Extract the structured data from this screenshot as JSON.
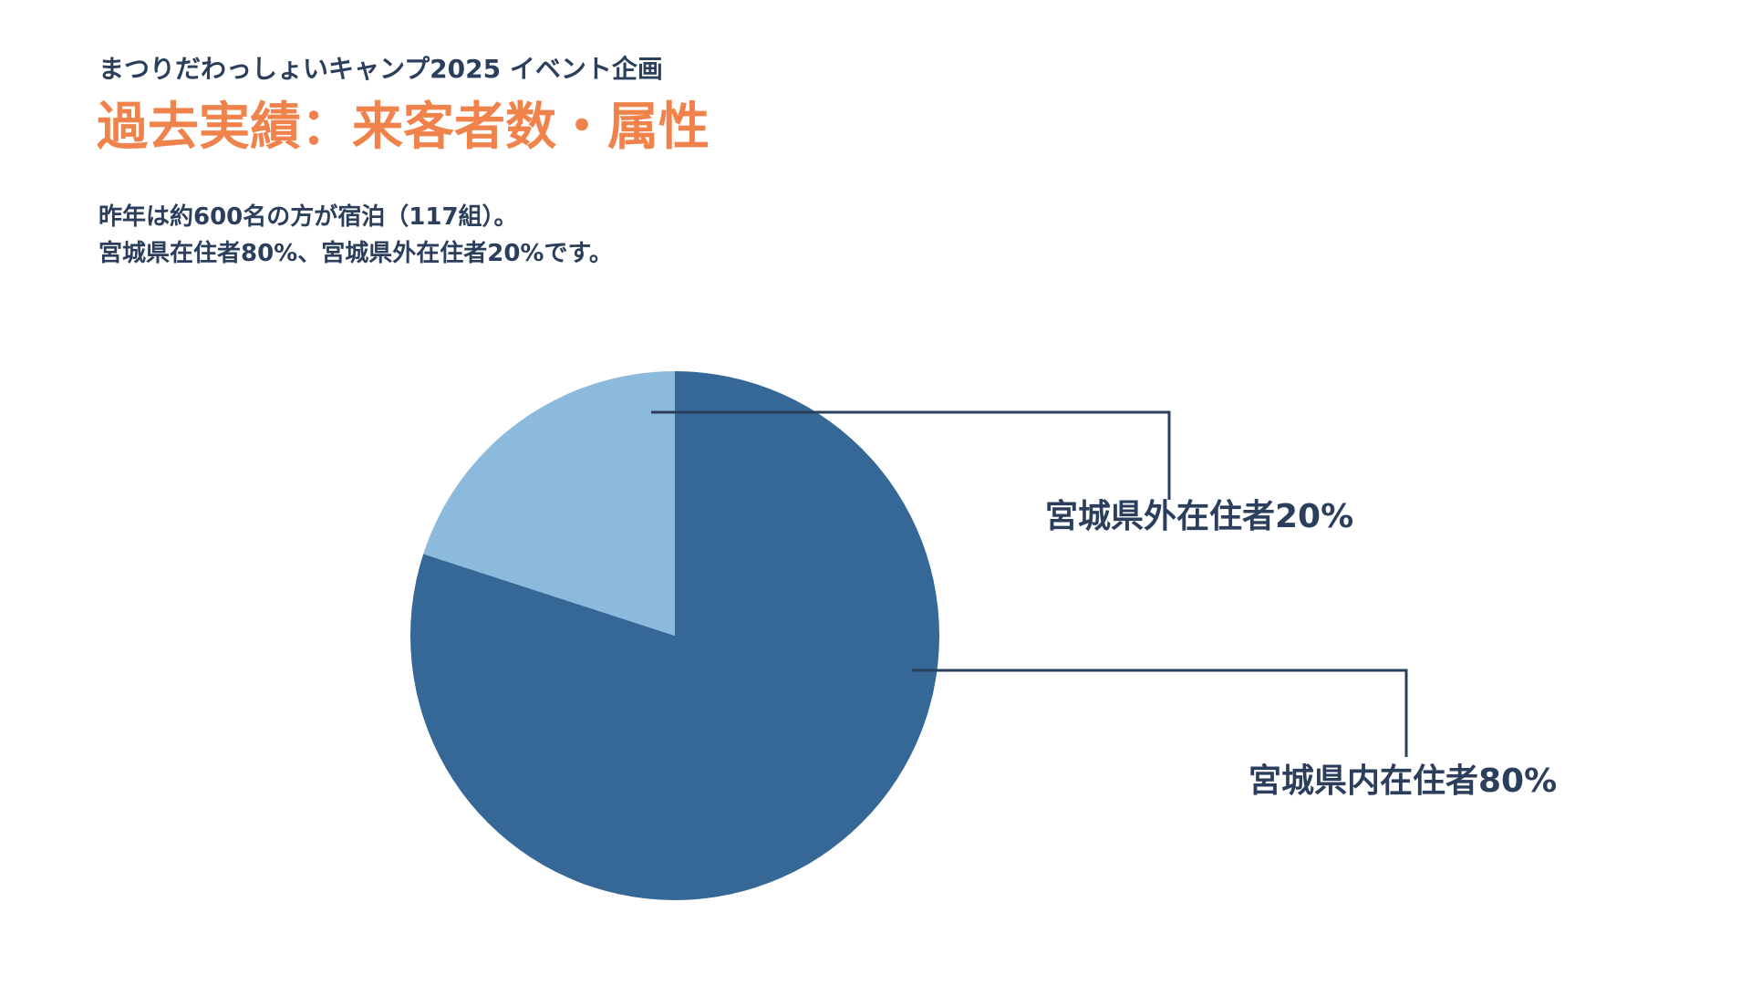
{
  "header": {
    "kicker": "まつりだわっしょいキャンプ2025 イベント企画",
    "title": "過去実績：来客者数・属性"
  },
  "description": {
    "line1": "昨年は約600名の方が宿泊（117組）。",
    "line2": "宮城県在住者80%、宮城県外在住者20%です。"
  },
  "colors": {
    "title": "#f0834c",
    "text": "#2b3f5c",
    "leader": "#2b3f5c"
  },
  "chart_data": {
    "type": "pie",
    "unit": "%",
    "slices": [
      {
        "label": "宮城県内在住者80%",
        "value": 80,
        "color": "#356797"
      },
      {
        "label": "宮城県外在住者20%",
        "value": 20,
        "color": "#8bbadc"
      }
    ],
    "legend": "none"
  }
}
